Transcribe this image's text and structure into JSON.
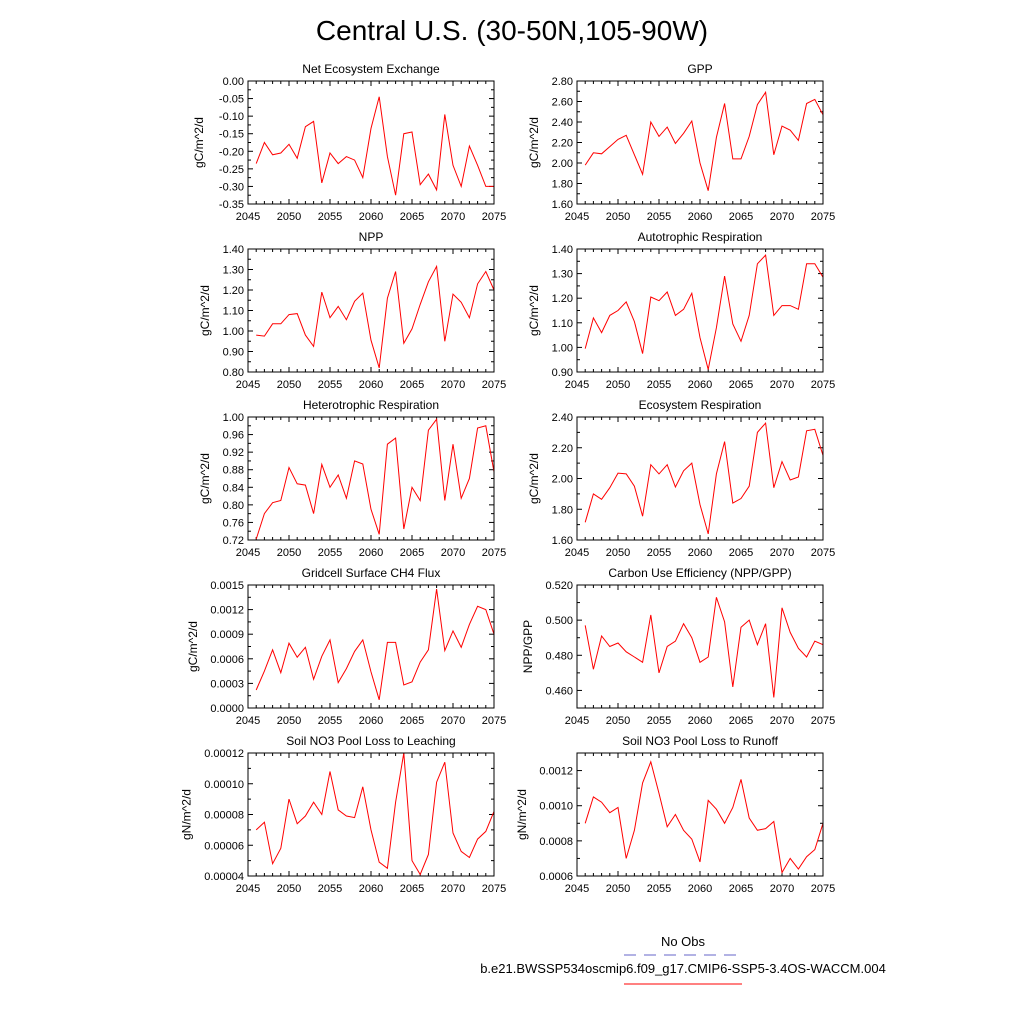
{
  "figure": {
    "title": "Central U.S. (30-50N,105-90W)",
    "legend": {
      "obs_label": "No Obs",
      "obs_color": "#6464c8",
      "model_label": "b.e21.BWSSP534oscmip6.f09_g17.CMIP6-SSP5-3.4OS-WACCM.004",
      "model_color": "#ff0000"
    }
  },
  "chart_data": [
    {
      "type": "line",
      "title": "Net Ecosystem Exchange",
      "ylabel": "gC/m^2/d",
      "xlim": [
        2045,
        2075
      ],
      "ylim": [
        -0.35,
        0.0
      ],
      "xticks": [
        2045,
        2050,
        2055,
        2060,
        2065,
        2070,
        2075
      ],
      "xtick_labels": [
        "2045",
        "2050",
        "2055",
        "2060",
        "2065",
        "2070",
        "2075"
      ],
      "yticks": [
        -0.35,
        -0.3,
        -0.25,
        -0.2,
        -0.15,
        -0.1,
        -0.05,
        0.0
      ],
      "ytick_labels": [
        "-0.35",
        "-0.30",
        "-0.25",
        "-0.20",
        "-0.15",
        "-0.10",
        "-0.05",
        "0.00"
      ],
      "x": [
        2046,
        2047,
        2048,
        2049,
        2050,
        2051,
        2052,
        2053,
        2054,
        2055,
        2056,
        2057,
        2058,
        2059,
        2060,
        2061,
        2062,
        2063,
        2064,
        2065,
        2066,
        2067,
        2068,
        2069,
        2070,
        2071,
        2072,
        2073,
        2074,
        2075
      ],
      "series": [
        {
          "color": "#ff0000",
          "values": [
            -0.235,
            -0.175,
            -0.21,
            -0.205,
            -0.18,
            -0.22,
            -0.13,
            -0.115,
            -0.29,
            -0.205,
            -0.235,
            -0.215,
            -0.225,
            -0.275,
            -0.135,
            -0.045,
            -0.215,
            -0.325,
            -0.15,
            -0.145,
            -0.295,
            -0.265,
            -0.31,
            -0.095,
            -0.24,
            -0.3,
            -0.185,
            -0.24,
            -0.3,
            -0.3
          ]
        }
      ]
    },
    {
      "type": "line",
      "title": "GPP",
      "ylabel": "gC/m^2/d",
      "xlim": [
        2045,
        2075
      ],
      "ylim": [
        1.6,
        2.8
      ],
      "xticks": [
        2045,
        2050,
        2055,
        2060,
        2065,
        2070,
        2075
      ],
      "xtick_labels": [
        "2045",
        "2050",
        "2055",
        "2060",
        "2065",
        "2070",
        "2075"
      ],
      "yticks": [
        1.6,
        1.8,
        2.0,
        2.2,
        2.4,
        2.6,
        2.8
      ],
      "ytick_labels": [
        "1.60",
        "1.80",
        "2.00",
        "2.20",
        "2.40",
        "2.60",
        "2.80"
      ],
      "x": [
        2046,
        2047,
        2048,
        2049,
        2050,
        2051,
        2052,
        2053,
        2054,
        2055,
        2056,
        2057,
        2058,
        2059,
        2060,
        2061,
        2062,
        2063,
        2064,
        2065,
        2066,
        2067,
        2068,
        2069,
        2070,
        2071,
        2072,
        2073,
        2074,
        2075
      ],
      "series": [
        {
          "color": "#ff0000",
          "values": [
            1.98,
            2.1,
            2.09,
            2.16,
            2.23,
            2.27,
            2.08,
            1.89,
            2.4,
            2.26,
            2.35,
            2.19,
            2.29,
            2.41,
            2.0,
            1.73,
            2.25,
            2.58,
            2.04,
            2.04,
            2.26,
            2.57,
            2.69,
            2.08,
            2.36,
            2.32,
            2.22,
            2.58,
            2.62,
            2.47
          ]
        }
      ]
    },
    {
      "type": "line",
      "title": "NPP",
      "ylabel": "gC/m^2/d",
      "xlim": [
        2045,
        2075
      ],
      "ylim": [
        0.8,
        1.4
      ],
      "xticks": [
        2045,
        2050,
        2055,
        2060,
        2065,
        2070,
        2075
      ],
      "xtick_labels": [
        "2045",
        "2050",
        "2055",
        "2060",
        "2065",
        "2070",
        "2075"
      ],
      "yticks": [
        0.8,
        0.9,
        1.0,
        1.1,
        1.2,
        1.3,
        1.4
      ],
      "ytick_labels": [
        "0.80",
        "0.90",
        "1.00",
        "1.10",
        "1.20",
        "1.30",
        "1.40"
      ],
      "x": [
        2046,
        2047,
        2048,
        2049,
        2050,
        2051,
        2052,
        2053,
        2054,
        2055,
        2056,
        2057,
        2058,
        2059,
        2060,
        2061,
        2062,
        2063,
        2064,
        2065,
        2066,
        2067,
        2068,
        2069,
        2070,
        2071,
        2072,
        2073,
        2074,
        2075
      ],
      "series": [
        {
          "color": "#ff0000",
          "values": [
            0.98,
            0.975,
            1.035,
            1.035,
            1.08,
            1.085,
            0.98,
            0.925,
            1.19,
            1.065,
            1.12,
            1.055,
            1.145,
            1.185,
            0.955,
            0.82,
            1.16,
            1.29,
            0.94,
            1.01,
            1.13,
            1.24,
            1.315,
            0.95,
            1.18,
            1.14,
            1.065,
            1.23,
            1.29,
            1.2
          ]
        }
      ]
    },
    {
      "type": "line",
      "title": "Autotrophic Respiration",
      "ylabel": "gC/m^2/d",
      "xlim": [
        2045,
        2075
      ],
      "ylim": [
        0.9,
        1.4
      ],
      "xticks": [
        2045,
        2050,
        2055,
        2060,
        2065,
        2070,
        2075
      ],
      "xtick_labels": [
        "2045",
        "2050",
        "2055",
        "2060",
        "2065",
        "2070",
        "2075"
      ],
      "yticks": [
        0.9,
        1.0,
        1.1,
        1.2,
        1.3,
        1.4
      ],
      "ytick_labels": [
        "0.90",
        "1.00",
        "1.10",
        "1.20",
        "1.30",
        "1.40"
      ],
      "x": [
        2046,
        2047,
        2048,
        2049,
        2050,
        2051,
        2052,
        2053,
        2054,
        2055,
        2056,
        2057,
        2058,
        2059,
        2060,
        2061,
        2062,
        2063,
        2064,
        2065,
        2066,
        2067,
        2068,
        2069,
        2070,
        2071,
        2072,
        2073,
        2074,
        2075
      ],
      "series": [
        {
          "color": "#ff0000",
          "values": [
            0.995,
            1.12,
            1.06,
            1.13,
            1.15,
            1.185,
            1.105,
            0.975,
            1.205,
            1.19,
            1.225,
            1.13,
            1.155,
            1.22,
            1.04,
            0.91,
            1.08,
            1.29,
            1.095,
            1.025,
            1.13,
            1.34,
            1.375,
            1.13,
            1.17,
            1.17,
            1.155,
            1.34,
            1.34,
            1.285
          ]
        }
      ]
    },
    {
      "type": "line",
      "title": "Heterotrophic Respiration",
      "ylabel": "gC/m^2/d",
      "xlim": [
        2045,
        2075
      ],
      "ylim": [
        0.72,
        1.0
      ],
      "xticks": [
        2045,
        2050,
        2055,
        2060,
        2065,
        2070,
        2075
      ],
      "xtick_labels": [
        "2045",
        "2050",
        "2055",
        "2060",
        "2065",
        "2070",
        "2075"
      ],
      "yticks": [
        0.72,
        0.76,
        0.8,
        0.84,
        0.88,
        0.92,
        0.96,
        1.0
      ],
      "ytick_labels": [
        "0.72",
        "0.76",
        "0.80",
        "0.84",
        "0.88",
        "0.92",
        "0.96",
        "1.00"
      ],
      "x": [
        2046,
        2047,
        2048,
        2049,
        2050,
        2051,
        2052,
        2053,
        2054,
        2055,
        2056,
        2057,
        2058,
        2059,
        2060,
        2061,
        2062,
        2063,
        2064,
        2065,
        2066,
        2067,
        2068,
        2069,
        2070,
        2071,
        2072,
        2073,
        2074,
        2075
      ],
      "series": [
        {
          "color": "#ff0000",
          "values": [
            0.722,
            0.78,
            0.805,
            0.81,
            0.885,
            0.848,
            0.845,
            0.78,
            0.892,
            0.84,
            0.868,
            0.815,
            0.9,
            0.893,
            0.79,
            0.733,
            0.938,
            0.952,
            0.745,
            0.84,
            0.81,
            0.97,
            0.995,
            0.81,
            0.938,
            0.815,
            0.86,
            0.975,
            0.98,
            0.875
          ]
        }
      ]
    },
    {
      "type": "line",
      "title": "Ecosystem Respiration",
      "ylabel": "gC/m^2/d",
      "xlim": [
        2045,
        2075
      ],
      "ylim": [
        1.6,
        2.4
      ],
      "xticks": [
        2045,
        2050,
        2055,
        2060,
        2065,
        2070,
        2075
      ],
      "xtick_labels": [
        "2045",
        "2050",
        "2055",
        "2060",
        "2065",
        "2070",
        "2075"
      ],
      "yticks": [
        1.6,
        1.8,
        2.0,
        2.2,
        2.4
      ],
      "ytick_labels": [
        "1.60",
        "1.80",
        "2.00",
        "2.20",
        "2.40"
      ],
      "x": [
        2046,
        2047,
        2048,
        2049,
        2050,
        2051,
        2052,
        2053,
        2054,
        2055,
        2056,
        2057,
        2058,
        2059,
        2060,
        2061,
        2062,
        2063,
        2064,
        2065,
        2066,
        2067,
        2068,
        2069,
        2070,
        2071,
        2072,
        2073,
        2074,
        2075
      ],
      "series": [
        {
          "color": "#ff0000",
          "values": [
            1.715,
            1.9,
            1.865,
            1.94,
            2.035,
            2.03,
            1.95,
            1.755,
            2.09,
            2.03,
            2.09,
            1.945,
            2.05,
            2.1,
            1.83,
            1.64,
            2.03,
            2.24,
            1.84,
            1.87,
            1.95,
            2.3,
            2.36,
            1.94,
            2.11,
            1.99,
            2.01,
            2.31,
            2.32,
            2.15
          ]
        }
      ]
    },
    {
      "type": "line",
      "title": "Gridcell Surface CH4 Flux",
      "ylabel": "gC/m^2/d",
      "xlim": [
        2045,
        2075
      ],
      "ylim": [
        0.0,
        0.0015
      ],
      "xticks": [
        2045,
        2050,
        2055,
        2060,
        2065,
        2070,
        2075
      ],
      "xtick_labels": [
        "2045",
        "2050",
        "2055",
        "2060",
        "2065",
        "2070",
        "2075"
      ],
      "yticks": [
        0.0,
        0.0003,
        0.0006,
        0.0009,
        0.0012,
        0.0015
      ],
      "ytick_labels": [
        "0.0000",
        "0.0003",
        "0.0006",
        "0.0009",
        "0.0012",
        "0.0015"
      ],
      "x": [
        2046,
        2047,
        2048,
        2049,
        2050,
        2051,
        2052,
        2053,
        2054,
        2055,
        2056,
        2057,
        2058,
        2059,
        2060,
        2061,
        2062,
        2063,
        2064,
        2065,
        2066,
        2067,
        2068,
        2069,
        2070,
        2071,
        2072,
        2073,
        2074,
        2075
      ],
      "series": [
        {
          "color": "#ff0000",
          "values": [
            0.00022,
            0.00045,
            0.00071,
            0.00043,
            0.00079,
            0.00062,
            0.00074,
            0.00035,
            0.00063,
            0.00083,
            0.00031,
            0.00048,
            0.00069,
            0.00083,
            0.00044,
            0.0001,
            0.0008,
            0.0008,
            0.00028,
            0.00032,
            0.00056,
            0.00071,
            0.00145,
            0.0007,
            0.00094,
            0.00074,
            0.00102,
            0.00124,
            0.0012,
            0.0009
          ]
        }
      ]
    },
    {
      "type": "line",
      "title": "Carbon Use Efficiency (NPP/GPP)",
      "ylabel": "NPP/GPP",
      "xlim": [
        2045,
        2075
      ],
      "ylim": [
        0.45,
        0.52
      ],
      "xticks": [
        2045,
        2050,
        2055,
        2060,
        2065,
        2070,
        2075
      ],
      "xtick_labels": [
        "2045",
        "2050",
        "2055",
        "2060",
        "2065",
        "2070",
        "2075"
      ],
      "yticks": [
        0.46,
        0.48,
        0.5,
        0.52
      ],
      "ytick_labels": [
        "0.460",
        "0.480",
        "0.500",
        "0.520"
      ],
      "x": [
        2046,
        2047,
        2048,
        2049,
        2050,
        2051,
        2052,
        2053,
        2054,
        2055,
        2056,
        2057,
        2058,
        2059,
        2060,
        2061,
        2062,
        2063,
        2064,
        2065,
        2066,
        2067,
        2068,
        2069,
        2070,
        2071,
        2072,
        2073,
        2074,
        2075
      ],
      "series": [
        {
          "color": "#ff0000",
          "values": [
            0.497,
            0.472,
            0.491,
            0.485,
            0.487,
            0.482,
            0.479,
            0.476,
            0.503,
            0.47,
            0.485,
            0.488,
            0.498,
            0.49,
            0.476,
            0.479,
            0.513,
            0.499,
            0.462,
            0.496,
            0.5,
            0.486,
            0.498,
            0.456,
            0.507,
            0.493,
            0.484,
            0.479,
            0.488,
            0.486
          ]
        }
      ]
    },
    {
      "type": "line",
      "title": "Soil NO3 Pool Loss to Leaching",
      "ylabel": "gN/m^2/d",
      "xlim": [
        2045,
        2075
      ],
      "ylim": [
        4e-05,
        0.00012
      ],
      "xticks": [
        2045,
        2050,
        2055,
        2060,
        2065,
        2070,
        2075
      ],
      "xtick_labels": [
        "2045",
        "2050",
        "2055",
        "2060",
        "2065",
        "2070",
        "2075"
      ],
      "yticks": [
        4e-05,
        6e-05,
        8e-05,
        0.0001,
        0.00012
      ],
      "ytick_labels": [
        "0.00004",
        "0.00006",
        "0.00008",
        "0.00010",
        "0.00012"
      ],
      "x": [
        2046,
        2047,
        2048,
        2049,
        2050,
        2051,
        2052,
        2053,
        2054,
        2055,
        2056,
        2057,
        2058,
        2059,
        2060,
        2061,
        2062,
        2063,
        2064,
        2065,
        2066,
        2067,
        2068,
        2069,
        2070,
        2071,
        2072,
        2073,
        2074,
        2075
      ],
      "series": [
        {
          "color": "#ff0000",
          "values": [
            7e-05,
            7.5e-05,
            4.8e-05,
            5.8e-05,
            9e-05,
            7.4e-05,
            7.9e-05,
            8.8e-05,
            8e-05,
            0.000108,
            8.3e-05,
            7.9e-05,
            7.8e-05,
            9.8e-05,
            7e-05,
            4.9e-05,
            4.5e-05,
            8.8e-05,
            0.00012,
            5e-05,
            4.1e-05,
            5.4e-05,
            0.000101,
            0.000114,
            6.8e-05,
            5.6e-05,
            5.2e-05,
            6.4e-05,
            6.9e-05,
            8.2e-05
          ]
        }
      ]
    },
    {
      "type": "line",
      "title": "Soil NO3 Pool Loss to Runoff",
      "ylabel": "gN/m^2/d",
      "xlim": [
        2045,
        2075
      ],
      "ylim": [
        0.0006,
        0.0013
      ],
      "xticks": [
        2045,
        2050,
        2055,
        2060,
        2065,
        2070,
        2075
      ],
      "xtick_labels": [
        "2045",
        "2050",
        "2055",
        "2060",
        "2065",
        "2070",
        "2075"
      ],
      "yticks": [
        0.0006,
        0.0008,
        0.001,
        0.0012
      ],
      "ytick_labels": [
        "0.0006",
        "0.0008",
        "0.0010",
        "0.0012"
      ],
      "x": [
        2046,
        2047,
        2048,
        2049,
        2050,
        2051,
        2052,
        2053,
        2054,
        2055,
        2056,
        2057,
        2058,
        2059,
        2060,
        2061,
        2062,
        2063,
        2064,
        2065,
        2066,
        2067,
        2068,
        2069,
        2070,
        2071,
        2072,
        2073,
        2074,
        2075
      ],
      "series": [
        {
          "color": "#ff0000",
          "values": [
            0.0009,
            0.00105,
            0.00102,
            0.00096,
            0.00099,
            0.0007,
            0.00086,
            0.00113,
            0.00125,
            0.00107,
            0.00088,
            0.00095,
            0.00086,
            0.00081,
            0.00068,
            0.00103,
            0.00098,
            0.0009,
            0.00099,
            0.00115,
            0.00093,
            0.00086,
            0.00087,
            0.00091,
            0.00062,
            0.0007,
            0.00064,
            0.00071,
            0.00075,
            0.0009
          ]
        }
      ]
    }
  ]
}
